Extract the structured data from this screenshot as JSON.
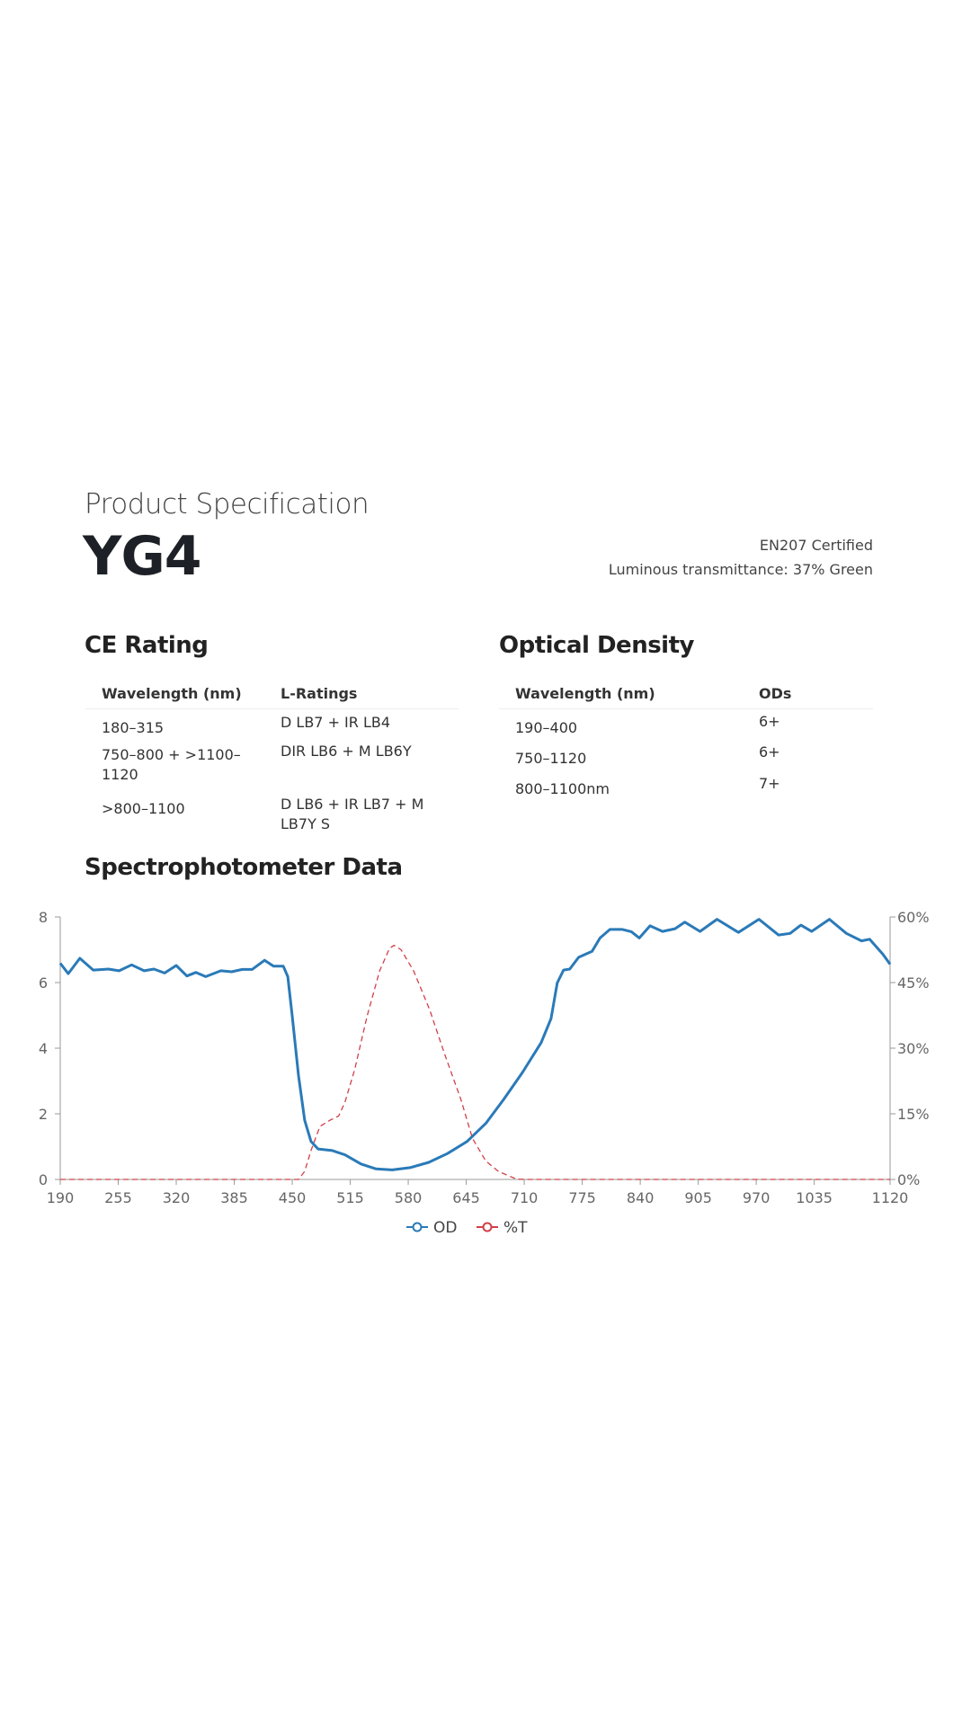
{
  "header": {
    "subtitle": "Product Specification",
    "title": "YG4",
    "certification": "EN207 Certified",
    "transmittance": "Luminous transmittance: 37% Green"
  },
  "ce_rating": {
    "heading": "CE Rating",
    "columns": [
      "Wavelength (nm)",
      "L-Ratings"
    ],
    "rows": [
      [
        "180–315",
        "D LB7 + IR LB4"
      ],
      [
        "750–800 + >1100–1120",
        "DIR LB6 + M LB6Y"
      ],
      [
        ">800–1100",
        "D LB6 + IR LB7 + M LB7Y S"
      ]
    ]
  },
  "optical_density": {
    "heading": "Optical Density",
    "columns": [
      "Wavelength (nm)",
      "ODs"
    ],
    "rows": [
      [
        "190–400",
        "6+"
      ],
      [
        "750–1120",
        "6+"
      ],
      [
        "800–1100nm",
        "7+"
      ]
    ]
  },
  "spectro": {
    "heading": "Spectrophotometer Data"
  },
  "chart_data": {
    "type": "line",
    "title": "Spectrophotometer Data",
    "xlabel": "",
    "ylabel": "",
    "xlim": [
      190,
      1120
    ],
    "xticks": [
      "190",
      "255",
      "320",
      "385",
      "450",
      "515",
      "580",
      "645",
      "710",
      "775",
      "840",
      "905",
      "970",
      "1035",
      "1120"
    ],
    "ylim": [
      0,
      8
    ],
    "yticks": [
      "0",
      "2",
      "4",
      "6",
      "8"
    ],
    "y2lim": [
      0,
      60
    ],
    "y2ticks": [
      "0%",
      "15%",
      "30%",
      "45%",
      "60%"
    ],
    "legend": "bottom-center",
    "colors": {
      "OD": "#2a7ab8",
      "%T": "#d0404a"
    },
    "series": [
      {
        "name": "OD",
        "axis": "left",
        "points": [
          [
            190,
            6.59
          ],
          [
            199,
            6.27
          ],
          [
            212,
            6.74
          ],
          [
            227,
            6.38
          ],
          [
            244,
            6.41
          ],
          [
            256,
            6.36
          ],
          [
            270,
            6.54
          ],
          [
            284,
            6.36
          ],
          [
            295,
            6.41
          ],
          [
            307,
            6.29
          ],
          [
            320,
            6.52
          ],
          [
            332,
            6.2
          ],
          [
            342,
            6.31
          ],
          [
            353,
            6.18
          ],
          [
            370,
            6.36
          ],
          [
            382,
            6.33
          ],
          [
            394,
            6.4
          ],
          [
            405,
            6.4
          ],
          [
            419,
            6.68
          ],
          [
            429,
            6.5
          ],
          [
            440,
            6.5
          ],
          [
            445,
            6.18
          ],
          [
            450,
            4.99
          ],
          [
            457,
            3.17
          ],
          [
            464,
            1.8
          ],
          [
            471,
            1.16
          ],
          [
            479,
            0.93
          ],
          [
            495,
            0.88
          ],
          [
            509,
            0.75
          ],
          [
            527,
            0.47
          ],
          [
            544,
            0.32
          ],
          [
            562,
            0.29
          ],
          [
            582,
            0.36
          ],
          [
            603,
            0.52
          ],
          [
            624,
            0.79
          ],
          [
            646,
            1.16
          ],
          [
            667,
            1.71
          ],
          [
            687,
            2.44
          ],
          [
            708,
            3.26
          ],
          [
            729,
            4.17
          ],
          [
            740,
            4.9
          ],
          [
            747,
            5.99
          ],
          [
            754,
            6.38
          ],
          [
            761,
            6.41
          ],
          [
            771,
            6.77
          ],
          [
            786,
            6.95
          ],
          [
            795,
            7.36
          ],
          [
            806,
            7.62
          ],
          [
            820,
            7.62
          ],
          [
            830,
            7.55
          ],
          [
            839,
            7.36
          ],
          [
            851,
            7.73
          ],
          [
            865,
            7.56
          ],
          [
            879,
            7.64
          ],
          [
            890,
            7.84
          ],
          [
            907,
            7.56
          ],
          [
            926,
            7.93
          ],
          [
            950,
            7.53
          ],
          [
            973,
            7.93
          ],
          [
            995,
            7.45
          ],
          [
            1008,
            7.5
          ],
          [
            1020,
            7.75
          ],
          [
            1032,
            7.56
          ],
          [
            1052,
            7.93
          ],
          [
            1071,
            7.5
          ],
          [
            1088,
            7.27
          ],
          [
            1097,
            7.32
          ],
          [
            1112,
            6.86
          ],
          [
            1120,
            6.56
          ]
        ]
      },
      {
        "name": "%T",
        "axis": "right",
        "points": [
          [
            190,
            0
          ],
          [
            457,
            0
          ],
          [
            464,
            1.85
          ],
          [
            471,
            6.6
          ],
          [
            481,
            12.1
          ],
          [
            492,
            13.5
          ],
          [
            502,
            14.5
          ],
          [
            509,
            17.6
          ],
          [
            520,
            25.1
          ],
          [
            534,
            37.4
          ],
          [
            548,
            47.7
          ],
          [
            559,
            52.8
          ],
          [
            564,
            53.5
          ],
          [
            572,
            52.5
          ],
          [
            586,
            47.7
          ],
          [
            604,
            38.8
          ],
          [
            621,
            28.5
          ],
          [
            639,
            18.3
          ],
          [
            652,
            9.4
          ],
          [
            667,
            4.2
          ],
          [
            681,
            1.85
          ],
          [
            701,
            0.1
          ],
          [
            711,
            0
          ],
          [
            1120,
            0
          ]
        ]
      }
    ]
  }
}
